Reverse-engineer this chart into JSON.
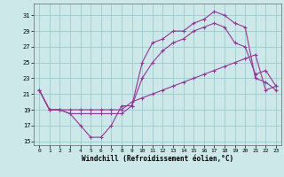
{
  "xlabel": "Windchill (Refroidissement éolien,°C)",
  "bg_color": "#cce8e8",
  "grid_color": "#99cccc",
  "line_color": "#993399",
  "xlim": [
    -0.5,
    23.5
  ],
  "ylim": [
    14.5,
    32.5
  ],
  "yticks": [
    15,
    17,
    19,
    21,
    23,
    25,
    27,
    29,
    31
  ],
  "xticks": [
    0,
    1,
    2,
    3,
    4,
    5,
    6,
    7,
    8,
    9,
    10,
    11,
    12,
    13,
    14,
    15,
    16,
    17,
    18,
    19,
    20,
    21,
    22,
    23
  ],
  "line1_x": [
    0,
    1,
    2,
    3,
    4,
    5,
    6,
    7,
    8,
    9,
    10,
    11,
    12,
    13,
    14,
    15,
    16,
    17,
    18,
    19,
    20,
    21,
    22,
    23
  ],
  "line1_y": [
    21.5,
    19.0,
    19.0,
    18.5,
    17.0,
    15.5,
    15.5,
    17.0,
    19.5,
    19.5,
    25.0,
    27.5,
    28.0,
    29.0,
    29.0,
    30.0,
    30.5,
    31.5,
    31.0,
    30.0,
    29.5,
    23.0,
    22.5,
    21.5
  ],
  "line2_x": [
    0,
    1,
    2,
    3,
    4,
    5,
    6,
    7,
    8,
    9,
    10,
    11,
    12,
    13,
    14,
    15,
    16,
    17,
    18,
    19,
    20,
    21,
    22,
    23
  ],
  "line2_y": [
    21.5,
    19.0,
    19.0,
    18.5,
    18.5,
    18.5,
    18.5,
    18.5,
    18.5,
    19.5,
    23.0,
    25.0,
    26.5,
    27.5,
    28.0,
    29.0,
    29.5,
    30.0,
    29.5,
    27.5,
    27.0,
    23.5,
    24.0,
    22.0
  ],
  "line3_x": [
    0,
    1,
    2,
    3,
    4,
    5,
    6,
    7,
    8,
    9,
    10,
    11,
    12,
    13,
    14,
    15,
    16,
    17,
    18,
    19,
    20,
    21,
    22,
    23
  ],
  "line3_y": [
    21.5,
    19.0,
    19.0,
    19.0,
    19.0,
    19.0,
    19.0,
    19.0,
    19.0,
    20.0,
    20.5,
    21.0,
    21.5,
    22.0,
    22.5,
    23.0,
    23.5,
    24.0,
    24.5,
    25.0,
    25.5,
    26.0,
    21.5,
    22.0
  ]
}
